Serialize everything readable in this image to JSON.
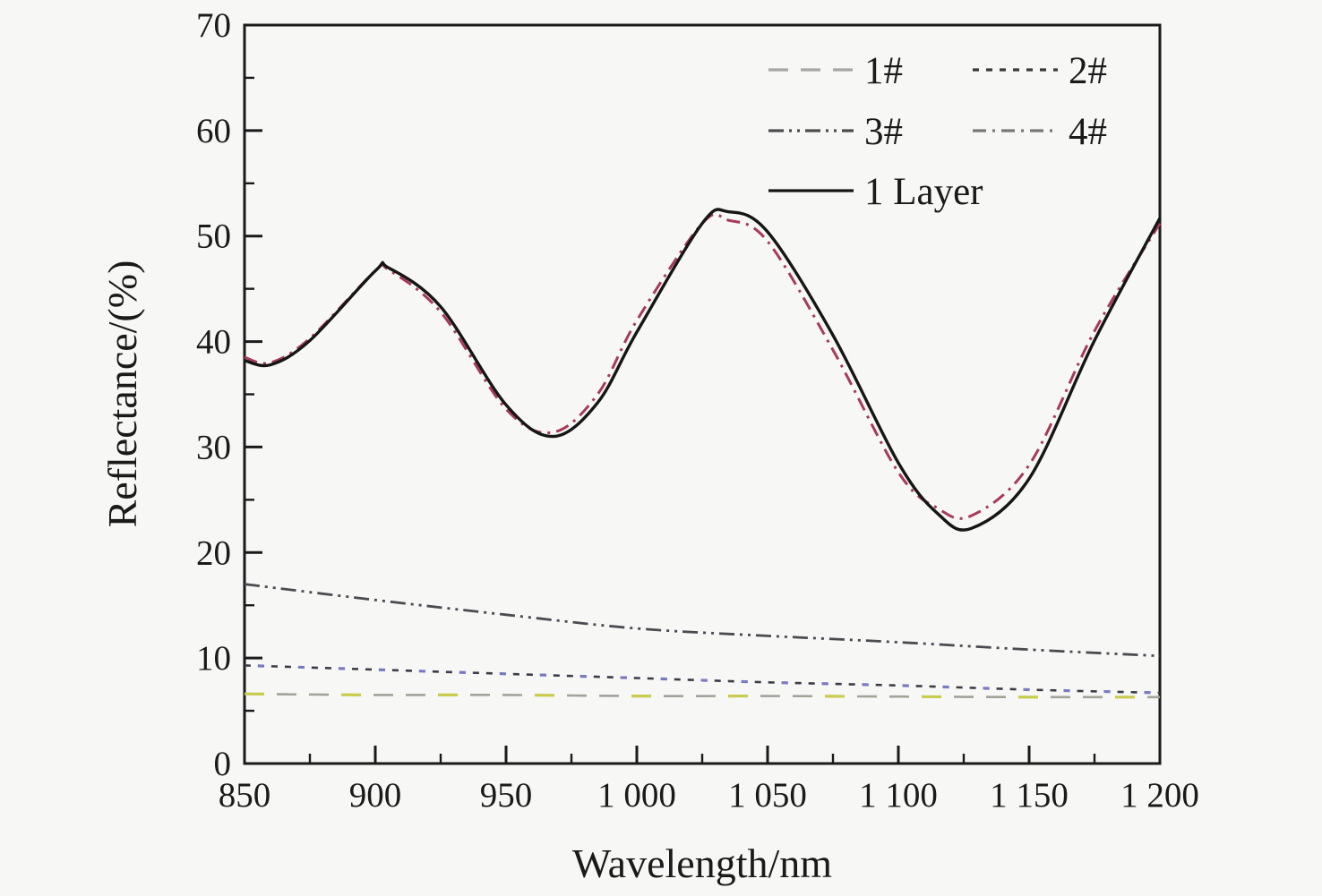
{
  "colors": {
    "background": "#f7f7f6",
    "axis": "#1a1a1a",
    "text": "#1a1a1a"
  },
  "chart_data": {
    "type": "line",
    "title": "",
    "xlabel": "Wavelength/nm",
    "ylabel": "Reflectance/(%)",
    "xlim": [
      850,
      1200
    ],
    "ylim": [
      0,
      70
    ],
    "grid": false,
    "legend_position": "top-right-inside",
    "xtick_values": [
      850,
      900,
      950,
      1000,
      1050,
      1100,
      1150,
      1200
    ],
    "xtick_labels": [
      "850",
      "900",
      "950",
      "1 000",
      "1 050",
      "1 100",
      "1 150",
      "1 200"
    ],
    "ytick_values": [
      0,
      10,
      20,
      30,
      40,
      50,
      60,
      70
    ],
    "ytick_labels": [
      "0",
      "10",
      "20",
      "30",
      "40",
      "50",
      "60",
      "70"
    ],
    "minor_x_step": 25,
    "minor_y_step": 5,
    "series": [
      {
        "label": "1#",
        "line_style": "long-dash",
        "color": "#a2a299",
        "legend_color": "#a6a6a3",
        "accent_color": "#c9cc4d",
        "x": [
          850,
          900,
          950,
          1000,
          1050,
          1100,
          1150,
          1200
        ],
        "y": [
          6.6,
          6.5,
          6.5,
          6.4,
          6.4,
          6.35,
          6.3,
          6.3
        ]
      },
      {
        "label": "2#",
        "line_style": "short-dash",
        "color": "#3c3c46",
        "legend_color": "#3a3a3a",
        "accent_color": "#7a7ac4",
        "x": [
          850,
          900,
          950,
          1000,
          1050,
          1100,
          1150,
          1200
        ],
        "y": [
          9.3,
          8.9,
          8.5,
          8.1,
          7.7,
          7.4,
          7.0,
          6.7
        ]
      },
      {
        "label": "3#",
        "line_style": "dash-dot-dot",
        "color": "#4a4a50",
        "legend_color": "#4d4d4d",
        "x": [
          850,
          900,
          950,
          1000,
          1050,
          1100,
          1150,
          1200
        ],
        "y": [
          17.0,
          15.5,
          14.1,
          12.8,
          12.1,
          11.5,
          10.8,
          10.2
        ]
      },
      {
        "label": "4#",
        "line_style": "dash-dot",
        "color": "#a83a58",
        "legend_color": "#787878",
        "x": [
          850,
          860,
          875,
          900,
          905,
          925,
          950,
          968,
          985,
          1000,
          1025,
          1035,
          1050,
          1075,
          1100,
          1115,
          1128,
          1150,
          1175,
          1200
        ],
        "y": [
          38.5,
          38.0,
          40.3,
          46.7,
          46.8,
          42.8,
          33.6,
          31.4,
          35.0,
          42.0,
          51.2,
          51.5,
          49.5,
          39.2,
          27.6,
          24.2,
          23.5,
          28.3,
          41.0,
          51.2
        ]
      },
      {
        "label": "1 Layer",
        "line_style": "solid",
        "color": "#161616",
        "legend_color": "#161616",
        "x": [
          850,
          860,
          875,
          900,
          905,
          925,
          950,
          968,
          985,
          1000,
          1025,
          1035,
          1050,
          1075,
          1100,
          1115,
          1128,
          1150,
          1175,
          1200
        ],
        "y": [
          38.2,
          37.8,
          40.1,
          46.7,
          47.0,
          43.3,
          34.0,
          31.0,
          34.2,
          40.9,
          51.2,
          52.3,
          50.4,
          40.6,
          28.5,
          23.7,
          22.3,
          27.0,
          40.1,
          51.7
        ]
      }
    ],
    "legend_labels": [
      "1#",
      "2#",
      "3#",
      "4#",
      "1 Layer"
    ]
  }
}
